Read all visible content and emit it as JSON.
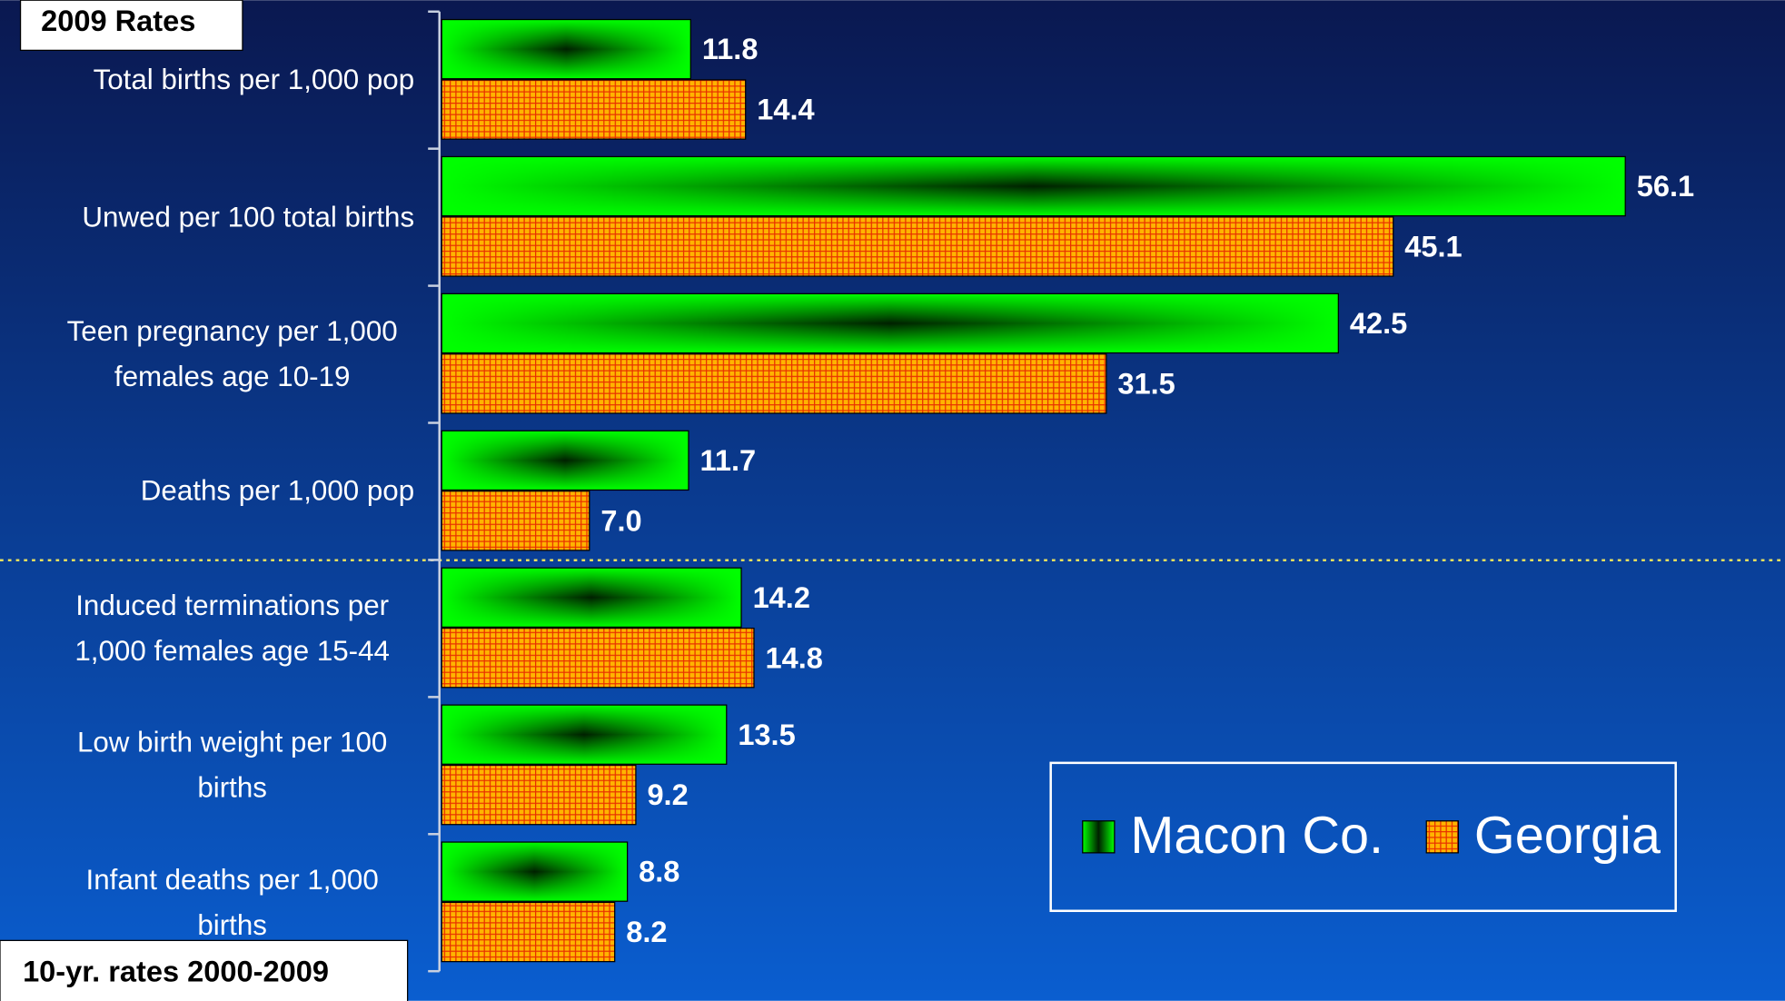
{
  "chart_data": {
    "type": "bar",
    "orientation": "horizontal",
    "annotations": [
      "2009 Rates",
      "10-yr. rates 2000-2009"
    ],
    "categories": [
      "Total births per 1,000 pop",
      "Unwed per 100 total births",
      "Teen pregnancy per 1,000 females age 10-19",
      "Deaths per 1,000 pop",
      "Induced terminations per 1,000 females age 15-44",
      "Low birth weight per 100 births",
      "Infant deaths per 1,000 births"
    ],
    "series": [
      {
        "name": "Macon Co.",
        "color": "#00e000",
        "values": [
          11.8,
          56.1,
          42.5,
          11.7,
          14.2,
          13.5,
          8.8
        ],
        "value_labels": [
          "11.8",
          "56.1",
          "42.5",
          "11.7",
          "14.2",
          "13.5",
          "8.8"
        ]
      },
      {
        "name": "Georgia",
        "color": "#ffb000",
        "values": [
          14.4,
          45.1,
          31.5,
          7.0,
          14.8,
          9.2,
          8.2
        ],
        "value_labels": [
          "14.4",
          "45.1",
          "31.5",
          "7.0",
          "14.8",
          "9.2",
          "8.2"
        ]
      }
    ],
    "xlim": [
      0,
      60
    ],
    "legend": "lower right"
  }
}
